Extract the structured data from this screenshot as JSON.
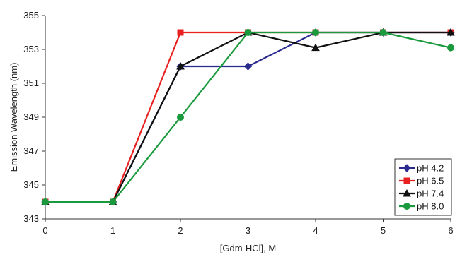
{
  "chart_data": {
    "type": "line",
    "title": "",
    "xlabel": "[Gdm-HCl], M",
    "ylabel": "Emission Wavelength (nm)",
    "x": [
      0,
      1,
      2,
      3,
      4,
      5,
      6
    ],
    "xlim": [
      0,
      6
    ],
    "ylim": [
      343,
      355
    ],
    "yticks": [
      343,
      345,
      347,
      349,
      351,
      353,
      355
    ],
    "grid": false,
    "legend_position": "bottom-right",
    "series": [
      {
        "name": "pH 4.2",
        "color": "#2b2b8f",
        "marker": "diamond",
        "values": [
          344,
          344,
          352,
          352,
          354,
          354,
          354
        ]
      },
      {
        "name": "pH 6.5",
        "color": "#e8201f",
        "marker": "square",
        "values": [
          344,
          344,
          354,
          354,
          354,
          354,
          354
        ]
      },
      {
        "name": "pH 7.4",
        "color": "#111111",
        "marker": "triangle",
        "values": [
          344,
          344,
          352,
          354,
          353.1,
          354,
          354
        ]
      },
      {
        "name": "pH 8.0",
        "color": "#1a9a3c",
        "marker": "circle",
        "values": [
          344,
          344,
          349,
          354,
          354,
          354,
          353.1
        ]
      }
    ]
  }
}
